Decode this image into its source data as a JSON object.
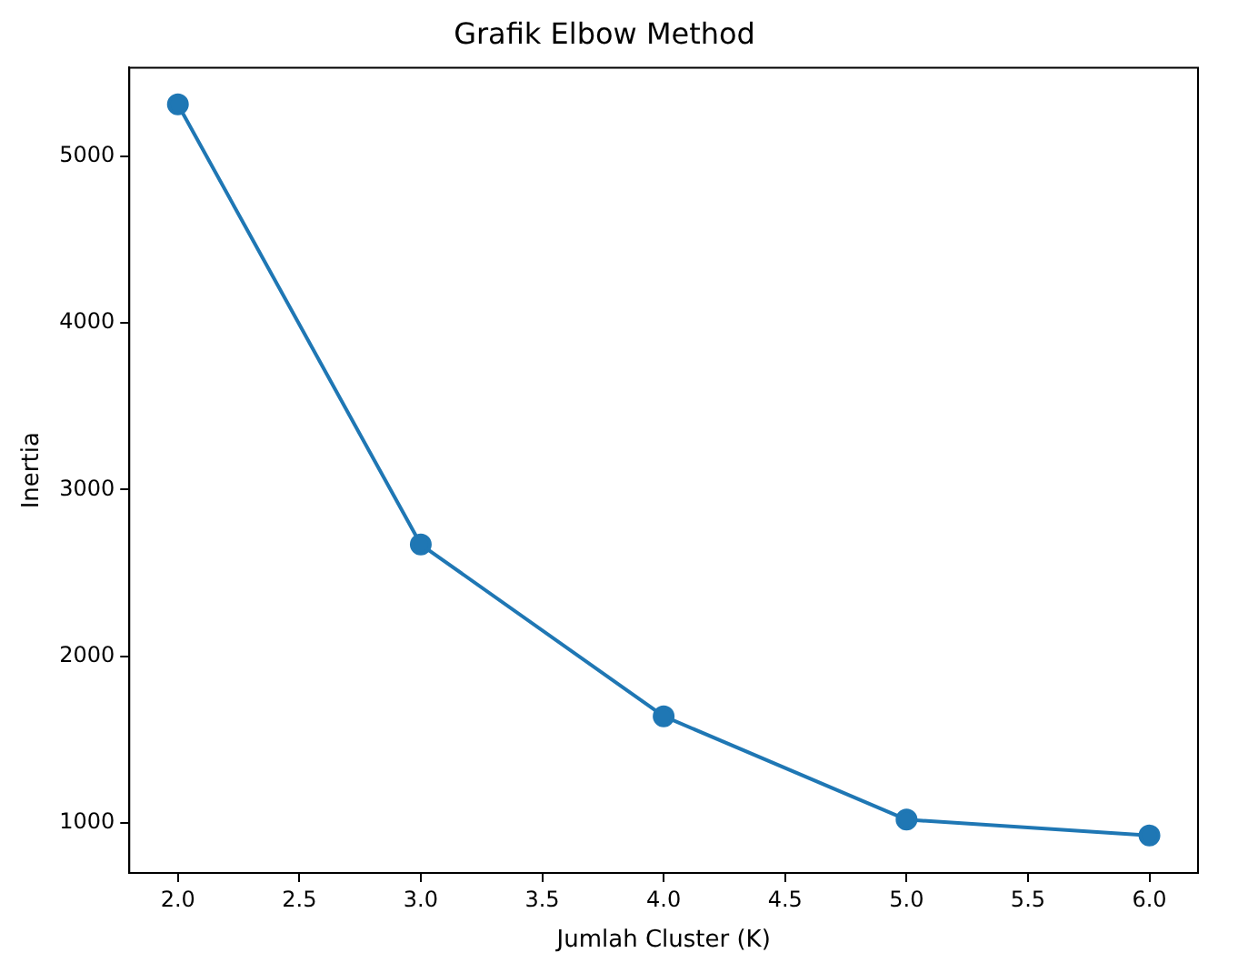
{
  "chart_data": {
    "type": "line",
    "title": "Grafik Elbow Method",
    "xlabel": "Jumlah Cluster (K)",
    "ylabel": "Inertia",
    "x": [
      2,
      3,
      4,
      5,
      6
    ],
    "series": [
      {
        "color": "#1f77b4",
        "values": [
          5310,
          2670,
          1640,
          1020,
          925
        ]
      }
    ],
    "xlim": [
      1.8,
      6.2
    ],
    "xticks": [
      {
        "value": 2,
        "label": "2.0"
      },
      {
        "value": 2.5,
        "label": "2.5"
      },
      {
        "value": 3,
        "label": "3.0"
      },
      {
        "value": 3.5,
        "label": "3.5"
      },
      {
        "value": 4,
        "label": "4.0"
      },
      {
        "value": 4.5,
        "label": "4.5"
      },
      {
        "value": 5,
        "label": "5.0"
      },
      {
        "value": 5.5,
        "label": "5.5"
      },
      {
        "value": 6,
        "label": "6.0"
      }
    ],
    "ylim": [
      700,
      5530
    ],
    "yticks": [
      1000,
      2000,
      3000,
      4000,
      5000
    ],
    "grid": false,
    "legend": false,
    "marker": "circle",
    "line_style": "solid"
  }
}
